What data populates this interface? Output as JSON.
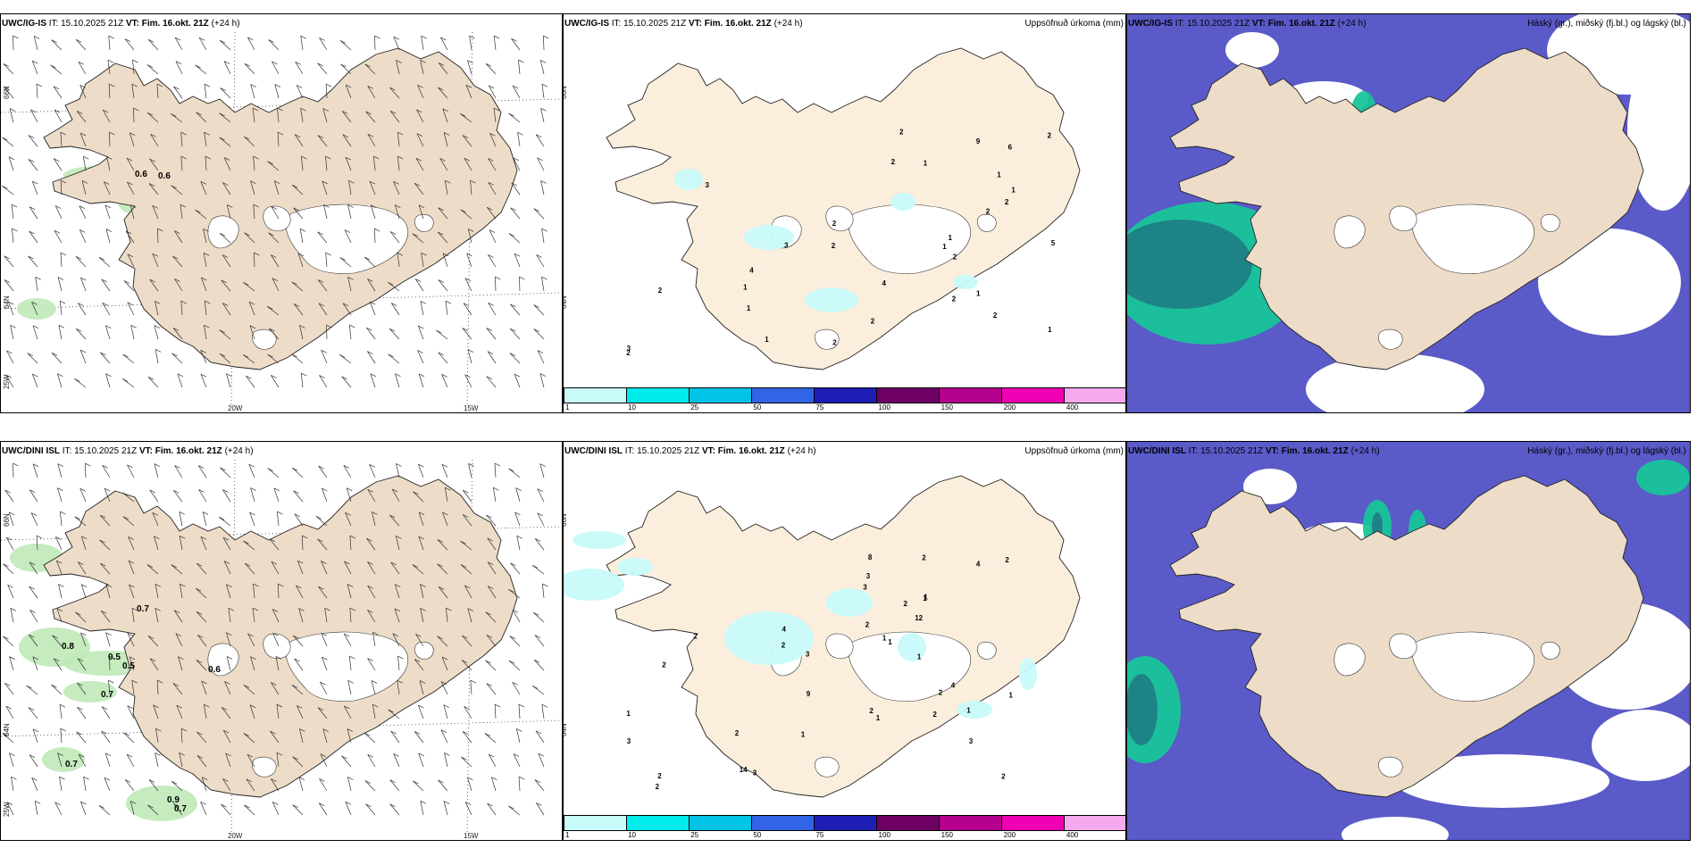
{
  "rows": [
    {
      "model": "UWC/IG-IS",
      "it": "IT: 15.10.2025 21Z",
      "vt_label": "VT:",
      "vt": "Fim. 16.okt. 21Z",
      "lead": "(+24 h)"
    },
    {
      "model": "UWC/DINI ISL",
      "it": "IT: 15.10.2025 21Z",
      "vt_label": "VT:",
      "vt": "Fim. 16.okt. 21Z",
      "lead": "(+24 h)"
    }
  ],
  "panel_labels": {
    "precip": "Uppsöfnuð úrkoma (mm)",
    "cloud": "Háský (gr.), miðský (fj.bl.) og lágský (bl.)"
  },
  "axis_labels": {
    "lat_top": "66N",
    "lat_mid": "64N",
    "lon_left": "25W",
    "lon_mid": "20W",
    "lon_right": "15W"
  },
  "colorbar": {
    "colors": [
      "#c8fafa",
      "#00ebeb",
      "#00c3e6",
      "#3264e6",
      "#1e1eb4",
      "#6e0064",
      "#b4008c",
      "#f000b4",
      "#f5aaf0"
    ],
    "ticks": [
      "1",
      "10",
      "25",
      "50",
      "75",
      "100",
      "150",
      "200",
      "400"
    ]
  },
  "wind_top_values": [
    "0.6",
    "0.6"
  ],
  "wind_bottom_values": [
    "0.7",
    "0.8",
    "0.5",
    "0.5",
    "0.7",
    "0.6",
    "0.7",
    "0.9",
    "0.7"
  ],
  "precip_top_values": [
    "2",
    "2",
    "2",
    "1",
    "9",
    "1",
    "2",
    "1",
    "2",
    "6",
    "5",
    "4",
    "3",
    "3",
    "2",
    "2",
    "2",
    "1",
    "2",
    "3",
    "2",
    "2",
    "4",
    "2",
    "1",
    "1",
    "2",
    "1",
    "1",
    "1",
    "1",
    "2"
  ],
  "precip_bottom_values": [
    "1",
    "1",
    "1",
    "1",
    "2",
    "2",
    "9",
    "3",
    "3",
    "2",
    "3",
    "2",
    "3",
    "8",
    "14",
    "12",
    "3",
    "3",
    "1",
    "2",
    "1",
    "2",
    "4",
    "2",
    "2",
    "2",
    "2",
    "4",
    "1",
    "2",
    "2",
    "1",
    "1",
    "1",
    "2",
    "2",
    "4"
  ],
  "colors": {
    "land": "#eddcc8",
    "land_precip": "#fbeedd",
    "glacier": "#ffffff",
    "wind_green": "#bfe9b8",
    "cloud_high": "#1f7f86",
    "cloud_mid": "#19c59a",
    "cloud_low": "#5a5ac8"
  }
}
